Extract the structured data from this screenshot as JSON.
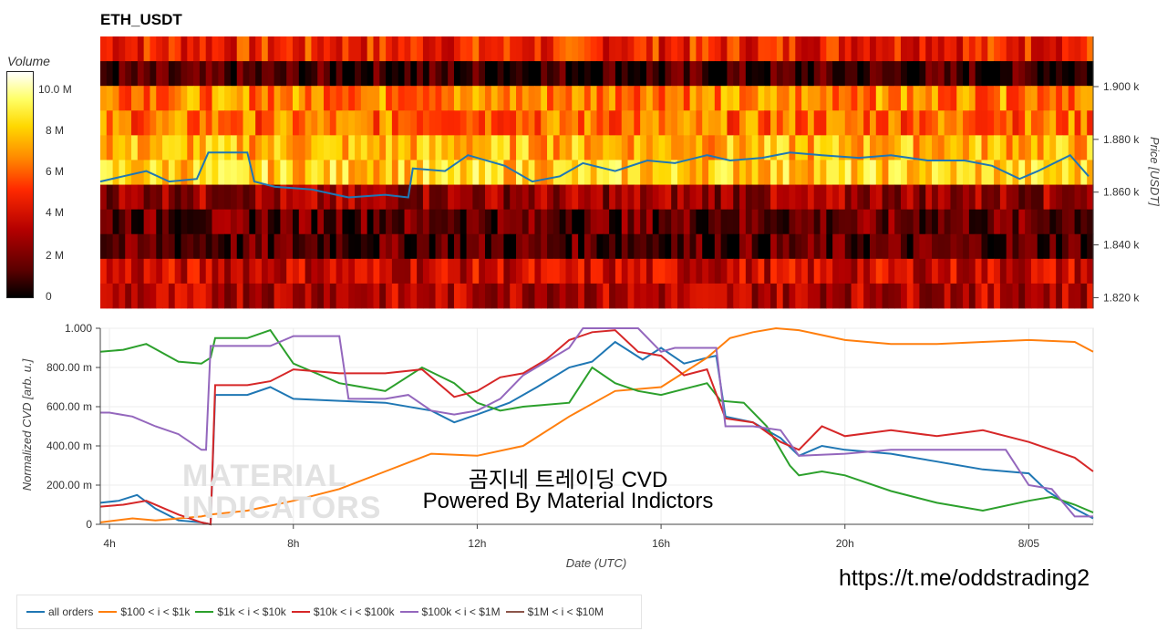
{
  "title": "ETH_USDT",
  "colorbar": {
    "title": "Volume",
    "ticks": [
      "10.0 M",
      "8 M",
      "6 M",
      "4 M",
      "2 M",
      "0"
    ]
  },
  "overlay": {
    "line1": "곰지네 트레이딩 CVD",
    "line2": "Powered By Material Indictors",
    "watermark1": "MATERIAL",
    "watermark2": "INDICATORS",
    "link": "https://t.me/oddstrading2"
  },
  "colors": {
    "all_orders": "#1f77b4",
    "b100_1k": "#ff7f0e",
    "b1k_10k": "#2ca02c",
    "b10k_100k": "#d62728",
    "b100k_1M": "#9467bd",
    "b1M_10M": "#8c564b"
  },
  "chart_data": [
    {
      "type": "heatmap",
      "title": "ETH_USDT",
      "ylabel": "Price [USDT]",
      "y_ticks": [
        "1.900 k",
        "1.880 k",
        "1.860 k",
        "1.840 k",
        "1.820 k"
      ],
      "y_tick_values": [
        1900,
        1880,
        1860,
        1840,
        1820
      ],
      "ylim": [
        1816,
        1919
      ],
      "price_levels": [
        1915,
        1905,
        1895,
        1885,
        1875,
        1865,
        1855,
        1845,
        1835,
        1825,
        1819
      ],
      "level_intensity": [
        0.45,
        0.08,
        0.62,
        0.58,
        0.7,
        0.75,
        0.25,
        0.15,
        0.12,
        0.35,
        0.3
      ],
      "colorbar_label": "Volume",
      "colorbar_range": [
        0,
        11500000
      ],
      "price_line": {
        "x": [
          3.8,
          4.3,
          4.8,
          5.3,
          5.9,
          6.15,
          7.0,
          7.15,
          7.6,
          8.4,
          9.2,
          10.0,
          10.5,
          10.6,
          11.3,
          11.8,
          12.6,
          13.2,
          13.8,
          14.3,
          15.0,
          15.7,
          16.3,
          17.0,
          17.5,
          18.2,
          18.8,
          19.5,
          20.3,
          21.0,
          21.8,
          22.6,
          23.2,
          23.8,
          24.2,
          24.9,
          25.3
        ],
        "y": [
          1864,
          1866,
          1868,
          1864,
          1865,
          1875,
          1875,
          1864,
          1862,
          1861,
          1858,
          1859,
          1858,
          1869,
          1868,
          1874,
          1870,
          1864,
          1866,
          1871,
          1868,
          1872,
          1871,
          1874,
          1872,
          1873,
          1875,
          1874,
          1873,
          1874,
          1872,
          1872,
          1870,
          1865,
          1868,
          1874,
          1866
        ]
      }
    },
    {
      "type": "line",
      "xlabel": "Date (UTC)",
      "ylabel": "Normalized CVD [arb. u.]",
      "x_ticks": [
        "4h",
        "8h",
        "12h",
        "16h",
        "20h",
        "8/05"
      ],
      "x_tick_values": [
        4,
        8,
        12,
        16,
        20,
        24
      ],
      "xlim": [
        3.8,
        25.4
      ],
      "y_ticks": [
        "0",
        "200.00 m",
        "400.00 m",
        "600.00 m",
        "800.00 m",
        "1.000"
      ],
      "y_tick_values": [
        0,
        0.2,
        0.4,
        0.6,
        0.8,
        1.0
      ],
      "ylim": [
        0,
        1
      ],
      "legend_position": "bottom",
      "series": [
        {
          "name": "all orders",
          "color": "#1f77b4",
          "x": [
            3.8,
            4.2,
            4.6,
            5.0,
            5.5,
            6.0,
            6.2,
            6.3,
            7.0,
            7.5,
            8.0,
            9.0,
            10.0,
            11.0,
            11.5,
            12.0,
            12.7,
            13.3,
            14.0,
            14.5,
            15.0,
            15.6,
            16.0,
            16.5,
            17.0,
            17.2,
            17.4,
            18.0,
            18.6,
            19.0,
            19.5,
            20.0,
            21.0,
            22.0,
            23.0,
            24.0,
            24.4,
            25.0,
            25.4
          ],
          "y": [
            0.11,
            0.12,
            0.15,
            0.08,
            0.02,
            0.01,
            0.0,
            0.66,
            0.66,
            0.7,
            0.64,
            0.63,
            0.62,
            0.58,
            0.52,
            0.56,
            0.62,
            0.7,
            0.8,
            0.83,
            0.93,
            0.84,
            0.9,
            0.82,
            0.85,
            0.86,
            0.55,
            0.52,
            0.44,
            0.35,
            0.4,
            0.38,
            0.36,
            0.32,
            0.28,
            0.26,
            0.17,
            0.08,
            0.03
          ]
        },
        {
          "name": "$100 < i < $1k",
          "color": "#ff7f0e",
          "x": [
            3.8,
            4.5,
            5.0,
            6.0,
            6.2,
            7.0,
            8.0,
            9.0,
            10.0,
            11.0,
            12.0,
            13.0,
            14.0,
            15.0,
            16.0,
            17.0,
            17.5,
            18.0,
            18.5,
            19.0,
            20.0,
            21.0,
            22.0,
            23.0,
            24.0,
            25.0,
            25.4
          ],
          "y": [
            0.01,
            0.03,
            0.02,
            0.04,
            0.05,
            0.07,
            0.12,
            0.18,
            0.27,
            0.36,
            0.35,
            0.4,
            0.55,
            0.68,
            0.7,
            0.85,
            0.95,
            0.98,
            1.0,
            0.99,
            0.94,
            0.92,
            0.92,
            0.93,
            0.94,
            0.93,
            0.88
          ]
        },
        {
          "name": "$1k < i < $10k",
          "color": "#2ca02c",
          "x": [
            3.8,
            4.3,
            4.8,
            5.5,
            6.0,
            6.2,
            6.3,
            7.0,
            7.5,
            8.0,
            9.0,
            10.0,
            10.8,
            11.5,
            12.0,
            12.5,
            13.0,
            14.0,
            14.5,
            15.0,
            15.5,
            16.0,
            17.0,
            17.3,
            17.8,
            18.3,
            18.8,
            19.0,
            19.5,
            20.0,
            21.0,
            22.0,
            23.0,
            24.0,
            24.5,
            25.0,
            25.4
          ],
          "y": [
            0.88,
            0.89,
            0.92,
            0.83,
            0.82,
            0.85,
            0.95,
            0.95,
            0.99,
            0.82,
            0.72,
            0.68,
            0.8,
            0.72,
            0.62,
            0.58,
            0.6,
            0.62,
            0.8,
            0.72,
            0.68,
            0.66,
            0.72,
            0.63,
            0.62,
            0.5,
            0.3,
            0.25,
            0.27,
            0.25,
            0.17,
            0.11,
            0.07,
            0.12,
            0.14,
            0.1,
            0.06
          ]
        },
        {
          "name": "$10k < i < $100k",
          "color": "#d62728",
          "x": [
            3.8,
            4.3,
            4.8,
            5.5,
            6.0,
            6.2,
            6.3,
            7.0,
            7.5,
            8.0,
            9.0,
            10.0,
            10.8,
            11.5,
            12.0,
            12.5,
            13.0,
            13.5,
            14.0,
            14.5,
            15.0,
            15.5,
            16.0,
            16.5,
            17.0,
            17.4,
            18.0,
            18.6,
            19.0,
            19.5,
            20.0,
            21.0,
            22.0,
            23.0,
            24.0,
            25.0,
            25.4
          ],
          "y": [
            0.09,
            0.1,
            0.12,
            0.05,
            0.01,
            0.0,
            0.71,
            0.71,
            0.73,
            0.79,
            0.77,
            0.77,
            0.79,
            0.65,
            0.68,
            0.75,
            0.77,
            0.84,
            0.94,
            0.98,
            0.99,
            0.88,
            0.86,
            0.76,
            0.79,
            0.54,
            0.52,
            0.42,
            0.38,
            0.5,
            0.45,
            0.48,
            0.45,
            0.48,
            0.42,
            0.34,
            0.27
          ]
        },
        {
          "name": "$100k < i < $1M",
          "color": "#9467bd",
          "x": [
            3.8,
            4.0,
            4.5,
            5.0,
            5.5,
            6.0,
            6.1,
            6.2,
            7.0,
            7.5,
            8.0,
            9.0,
            9.2,
            10.0,
            10.5,
            11.0,
            11.5,
            12.0,
            12.5,
            13.0,
            14.0,
            14.3,
            14.5,
            15.0,
            15.5,
            16.0,
            16.3,
            17.0,
            17.2,
            17.4,
            18.0,
            18.6,
            19.0,
            20.0,
            21.0,
            22.0,
            23.0,
            23.5,
            24.0,
            24.5,
            25.0,
            25.4
          ],
          "y": [
            0.57,
            0.57,
            0.55,
            0.5,
            0.46,
            0.38,
            0.38,
            0.91,
            0.91,
            0.91,
            0.96,
            0.96,
            0.64,
            0.64,
            0.66,
            0.58,
            0.56,
            0.58,
            0.64,
            0.76,
            0.9,
            1.0,
            1.0,
            1.0,
            1.0,
            0.88,
            0.9,
            0.9,
            0.9,
            0.5,
            0.5,
            0.48,
            0.35,
            0.36,
            0.38,
            0.38,
            0.38,
            0.38,
            0.2,
            0.18,
            0.04,
            0.04
          ]
        },
        {
          "name": "$1M < i < $10M",
          "color": "#8c564b",
          "x": [],
          "y": []
        }
      ]
    }
  ]
}
